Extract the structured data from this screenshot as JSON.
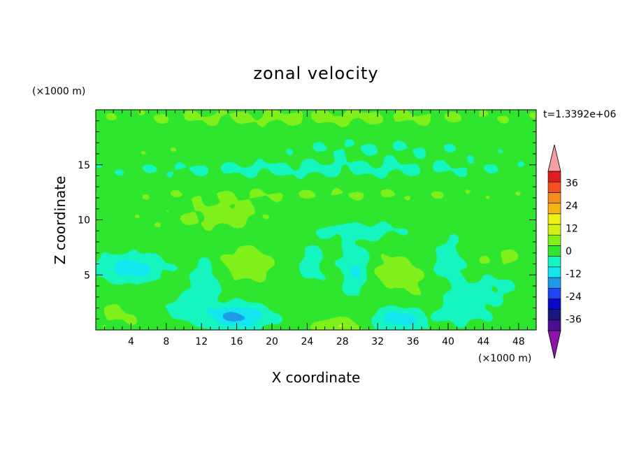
{
  "chart_data": {
    "type": "heatmap",
    "title": "zonal velocity",
    "xlabel": "X coordinate",
    "ylabel": "Z coordinate",
    "x_unit": "(×1000 m)",
    "y_unit": "(×1000 m)",
    "time_label": "t=1.3392e+06",
    "xlim": [
      0,
      50
    ],
    "ylim": [
      0,
      20
    ],
    "x_ticks": [
      "4",
      "8",
      "12",
      "16",
      "20",
      "24",
      "28",
      "32",
      "36",
      "40",
      "44",
      "48"
    ],
    "y_ticks": [
      "5",
      "10",
      "15"
    ],
    "colorbar": {
      "levels": [
        -42,
        -36,
        -30,
        -24,
        -18,
        -12,
        -6,
        0,
        6,
        12,
        18,
        24,
        30,
        36,
        42
      ],
      "labels": [
        "36",
        "24",
        "12",
        "0",
        "-12",
        "-24",
        "-36"
      ],
      "colors": [
        "#4b0f8f",
        "#1a1680",
        "#0a0ac4",
        "#1e46f5",
        "#1e9be6",
        "#14e6f0",
        "#14f5c0",
        "#2ee62e",
        "#80f01a",
        "#d2f014",
        "#f0f014",
        "#f5b414",
        "#f58c1e",
        "#f5501e",
        "#dc1e1e"
      ],
      "under_color": "#8c14a8",
      "over_color": "#f5a0a0"
    },
    "background_value": 3,
    "features": [
      {
        "x": 25,
        "z": 19.3,
        "sx": 30,
        "sz": 0.9,
        "amp": 4
      },
      {
        "x": 10,
        "z": 16.2,
        "sx": 10,
        "sz": 0.8,
        "amp": 3
      },
      {
        "x": 30,
        "z": 16.5,
        "sx": 20,
        "sz": 1.0,
        "amp": -3
      },
      {
        "x": 25,
        "z": 14.6,
        "sx": 30,
        "sz": 0.9,
        "amp": -4
      },
      {
        "x": 25,
        "z": 12.3,
        "sx": 30,
        "sz": 0.7,
        "amp": 3
      },
      {
        "x": 15,
        "z": 10.5,
        "sx": 4,
        "sz": 1.2,
        "amp": 5
      },
      {
        "x": 8,
        "z": 10.0,
        "sx": 8,
        "sz": 1.2,
        "amp": 2
      },
      {
        "x": 30,
        "z": 9.0,
        "sx": 5,
        "sz": 0.8,
        "amp": -6
      },
      {
        "x": 17,
        "z": 6.0,
        "sx": 2.8,
        "sz": 1.6,
        "amp": 8
      },
      {
        "x": 34,
        "z": 5.2,
        "sx": 2.8,
        "sz": 1.6,
        "amp": 7
      },
      {
        "x": 4,
        "z": 5.6,
        "sx": 3.5,
        "sz": 1.2,
        "amp": -13
      },
      {
        "x": 12.5,
        "z": 4.5,
        "sx": 1.8,
        "sz": 2.0,
        "amp": -7
      },
      {
        "x": 24.5,
        "z": 6.0,
        "sx": 1.6,
        "sz": 2.0,
        "amp": -6
      },
      {
        "x": 29.5,
        "z": 5.5,
        "sx": 1.6,
        "sz": 2.2,
        "amp": -10
      },
      {
        "x": 40,
        "z": 6.5,
        "sx": 2.0,
        "sz": 2.0,
        "amp": -6
      },
      {
        "x": 46,
        "z": 6.5,
        "sx": 3.0,
        "sz": 1.2,
        "amp": 4
      },
      {
        "x": 45,
        "z": 4.0,
        "sx": 4.0,
        "sz": 1.3,
        "amp": -4
      },
      {
        "x": 16,
        "z": 1.2,
        "sx": 3.5,
        "sz": 1.1,
        "amp": -17
      },
      {
        "x": 34.5,
        "z": 1.0,
        "sx": 3.0,
        "sz": 1.0,
        "amp": -13
      },
      {
        "x": 10,
        "z": 2.0,
        "sx": 2.5,
        "sz": 1.2,
        "amp": -6
      },
      {
        "x": 27.5,
        "z": 0.3,
        "sx": 2.5,
        "sz": 0.8,
        "amp": 9
      },
      {
        "x": 42,
        "z": 2.0,
        "sx": 3.0,
        "sz": 1.5,
        "amp": -7
      },
      {
        "x": 2.5,
        "z": 1.5,
        "sx": 3.0,
        "sz": 1.5,
        "amp": 4
      },
      {
        "x": 37.5,
        "z": 3.0,
        "sx": 1.5,
        "sz": 1.5,
        "amp": 3
      }
    ]
  }
}
